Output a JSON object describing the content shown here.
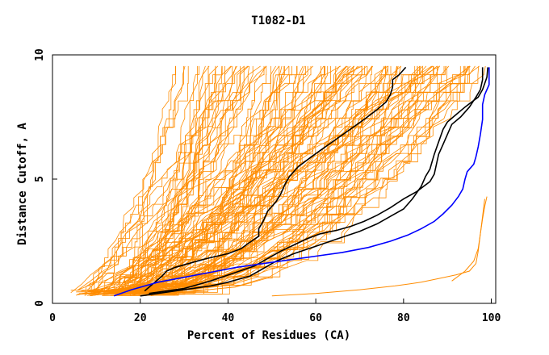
{
  "chart_data": {
    "type": "line",
    "title": "T1082-D1",
    "xlabel": "Percent of Residues (CA)",
    "ylabel": "Distance Cutoff, A",
    "xlim": [
      0,
      101
    ],
    "ylim": [
      0,
      10
    ],
    "x_ticks": [
      0,
      20,
      40,
      60,
      80,
      100
    ],
    "y_ticks": [
      0,
      5,
      10
    ],
    "colors": {
      "highlight_black": "#000000",
      "highlight_blue": "#0000ff",
      "background_models": "#ff8c00"
    },
    "background_model_count": 130,
    "highlight_series": [
      {
        "name": "black-curve-1",
        "color": "#000000",
        "points": [
          [
            20,
            0.3
          ],
          [
            28,
            0.5
          ],
          [
            36,
            0.7
          ],
          [
            40,
            0.85
          ],
          [
            45,
            1.1
          ],
          [
            48,
            1.4
          ],
          [
            51,
            1.7
          ],
          [
            55,
            2.0
          ],
          [
            60,
            2.3
          ],
          [
            65,
            2.6
          ],
          [
            70,
            2.9
          ],
          [
            74,
            3.2
          ],
          [
            77,
            3.5
          ],
          [
            80,
            3.8
          ],
          [
            82,
            4.2
          ],
          [
            84,
            4.7
          ],
          [
            85,
            5.1
          ],
          [
            86,
            5.4
          ],
          [
            86.5,
            5.7
          ],
          [
            87,
            6.0
          ],
          [
            88,
            6.5
          ],
          [
            89,
            7.0
          ],
          [
            90,
            7.3
          ],
          [
            92,
            7.6
          ],
          [
            94,
            7.9
          ],
          [
            95.5,
            8.1
          ],
          [
            97,
            8.3
          ],
          [
            98,
            8.6
          ],
          [
            99,
            9.1
          ],
          [
            99.2,
            9.5
          ]
        ]
      },
      {
        "name": "black-curve-2",
        "color": "#000000",
        "points": [
          [
            21,
            0.5
          ],
          [
            23,
            0.8
          ],
          [
            25,
            1.1
          ],
          [
            26,
            1.3
          ],
          [
            28,
            1.45
          ],
          [
            31,
            1.6
          ],
          [
            35,
            1.8
          ],
          [
            40,
            2.0
          ],
          [
            43,
            2.2
          ],
          [
            44.5,
            2.4
          ],
          [
            47,
            2.7
          ],
          [
            47,
            3.0
          ],
          [
            48,
            3.3
          ],
          [
            49,
            3.7
          ],
          [
            51,
            4.1
          ],
          [
            52,
            4.4
          ],
          [
            53,
            4.8
          ],
          [
            54,
            5.1
          ],
          [
            56,
            5.5
          ],
          [
            59,
            5.9
          ],
          [
            63,
            6.4
          ],
          [
            67,
            6.9
          ],
          [
            71,
            7.4
          ],
          [
            74,
            7.8
          ],
          [
            76,
            8.1
          ],
          [
            77,
            8.4
          ],
          [
            77.5,
            8.7
          ],
          [
            77.5,
            9.0
          ],
          [
            79,
            9.2
          ],
          [
            80.5,
            9.5
          ]
        ]
      },
      {
        "name": "black-curve-3",
        "color": "#000000",
        "points": [
          [
            22,
            0.4
          ],
          [
            30,
            0.6
          ],
          [
            36,
            0.9
          ],
          [
            41,
            1.2
          ],
          [
            46,
            1.5
          ],
          [
            49,
            1.8
          ],
          [
            52,
            2.1
          ],
          [
            55,
            2.35
          ],
          [
            58,
            2.6
          ],
          [
            61,
            2.8
          ],
          [
            65,
            2.95
          ],
          [
            68,
            3.1
          ],
          [
            71,
            3.3
          ],
          [
            74,
            3.55
          ],
          [
            77,
            3.85
          ],
          [
            80,
            4.2
          ],
          [
            83,
            4.5
          ],
          [
            86,
            4.9
          ],
          [
            87,
            5.2
          ],
          [
            87.5,
            5.6
          ],
          [
            88,
            6.0
          ],
          [
            89,
            6.4
          ],
          [
            90,
            6.8
          ],
          [
            91,
            7.2
          ],
          [
            93,
            7.5
          ],
          [
            95,
            7.9
          ],
          [
            96.5,
            8.3
          ],
          [
            97.5,
            8.6
          ],
          [
            98,
            9.0
          ],
          [
            98,
            9.5
          ]
        ]
      },
      {
        "name": "blue-curve",
        "color": "#0000ff",
        "points": [
          [
            14,
            0.3
          ],
          [
            18,
            0.55
          ],
          [
            24,
            0.85
          ],
          [
            30,
            1.05
          ],
          [
            36,
            1.25
          ],
          [
            42,
            1.45
          ],
          [
            48,
            1.6
          ],
          [
            54,
            1.75
          ],
          [
            60,
            1.9
          ],
          [
            66,
            2.05
          ],
          [
            72,
            2.25
          ],
          [
            77,
            2.5
          ],
          [
            81,
            2.75
          ],
          [
            84,
            3.0
          ],
          [
            87,
            3.3
          ],
          [
            89,
            3.6
          ],
          [
            91,
            3.95
          ],
          [
            92.5,
            4.3
          ],
          [
            93.5,
            4.6
          ],
          [
            94,
            5.0
          ],
          [
            94.5,
            5.3
          ],
          [
            96,
            5.6
          ],
          [
            96.5,
            5.9
          ],
          [
            97,
            6.3
          ],
          [
            97.5,
            6.8
          ],
          [
            98,
            7.4
          ],
          [
            98,
            8.0
          ],
          [
            98.5,
            8.4
          ],
          [
            99.5,
            8.8
          ],
          [
            99.5,
            9.5
          ]
        ]
      }
    ],
    "outlier_series": [
      {
        "name": "orange-outlier-bottom",
        "color": "#ff8c00",
        "points": [
          [
            50,
            0.3
          ],
          [
            60,
            0.4
          ],
          [
            70,
            0.55
          ],
          [
            78,
            0.7
          ],
          [
            84,
            0.85
          ],
          [
            88,
            1.0
          ],
          [
            92,
            1.15
          ],
          [
            95,
            1.3
          ],
          [
            96.5,
            1.6
          ],
          [
            97,
            2.1
          ],
          [
            97.5,
            2.8
          ],
          [
            98,
            3.4
          ],
          [
            98.5,
            3.9
          ],
          [
            99,
            4.3
          ]
        ]
      },
      {
        "name": "orange-outlier-far-right",
        "color": "#ff8c00",
        "points": [
          [
            91,
            0.9
          ],
          [
            94,
            1.3
          ],
          [
            96,
            1.7
          ],
          [
            97,
            2.2
          ],
          [
            97.5,
            2.8
          ],
          [
            98,
            3.5
          ],
          [
            98.5,
            4.2
          ]
        ]
      }
    ]
  }
}
